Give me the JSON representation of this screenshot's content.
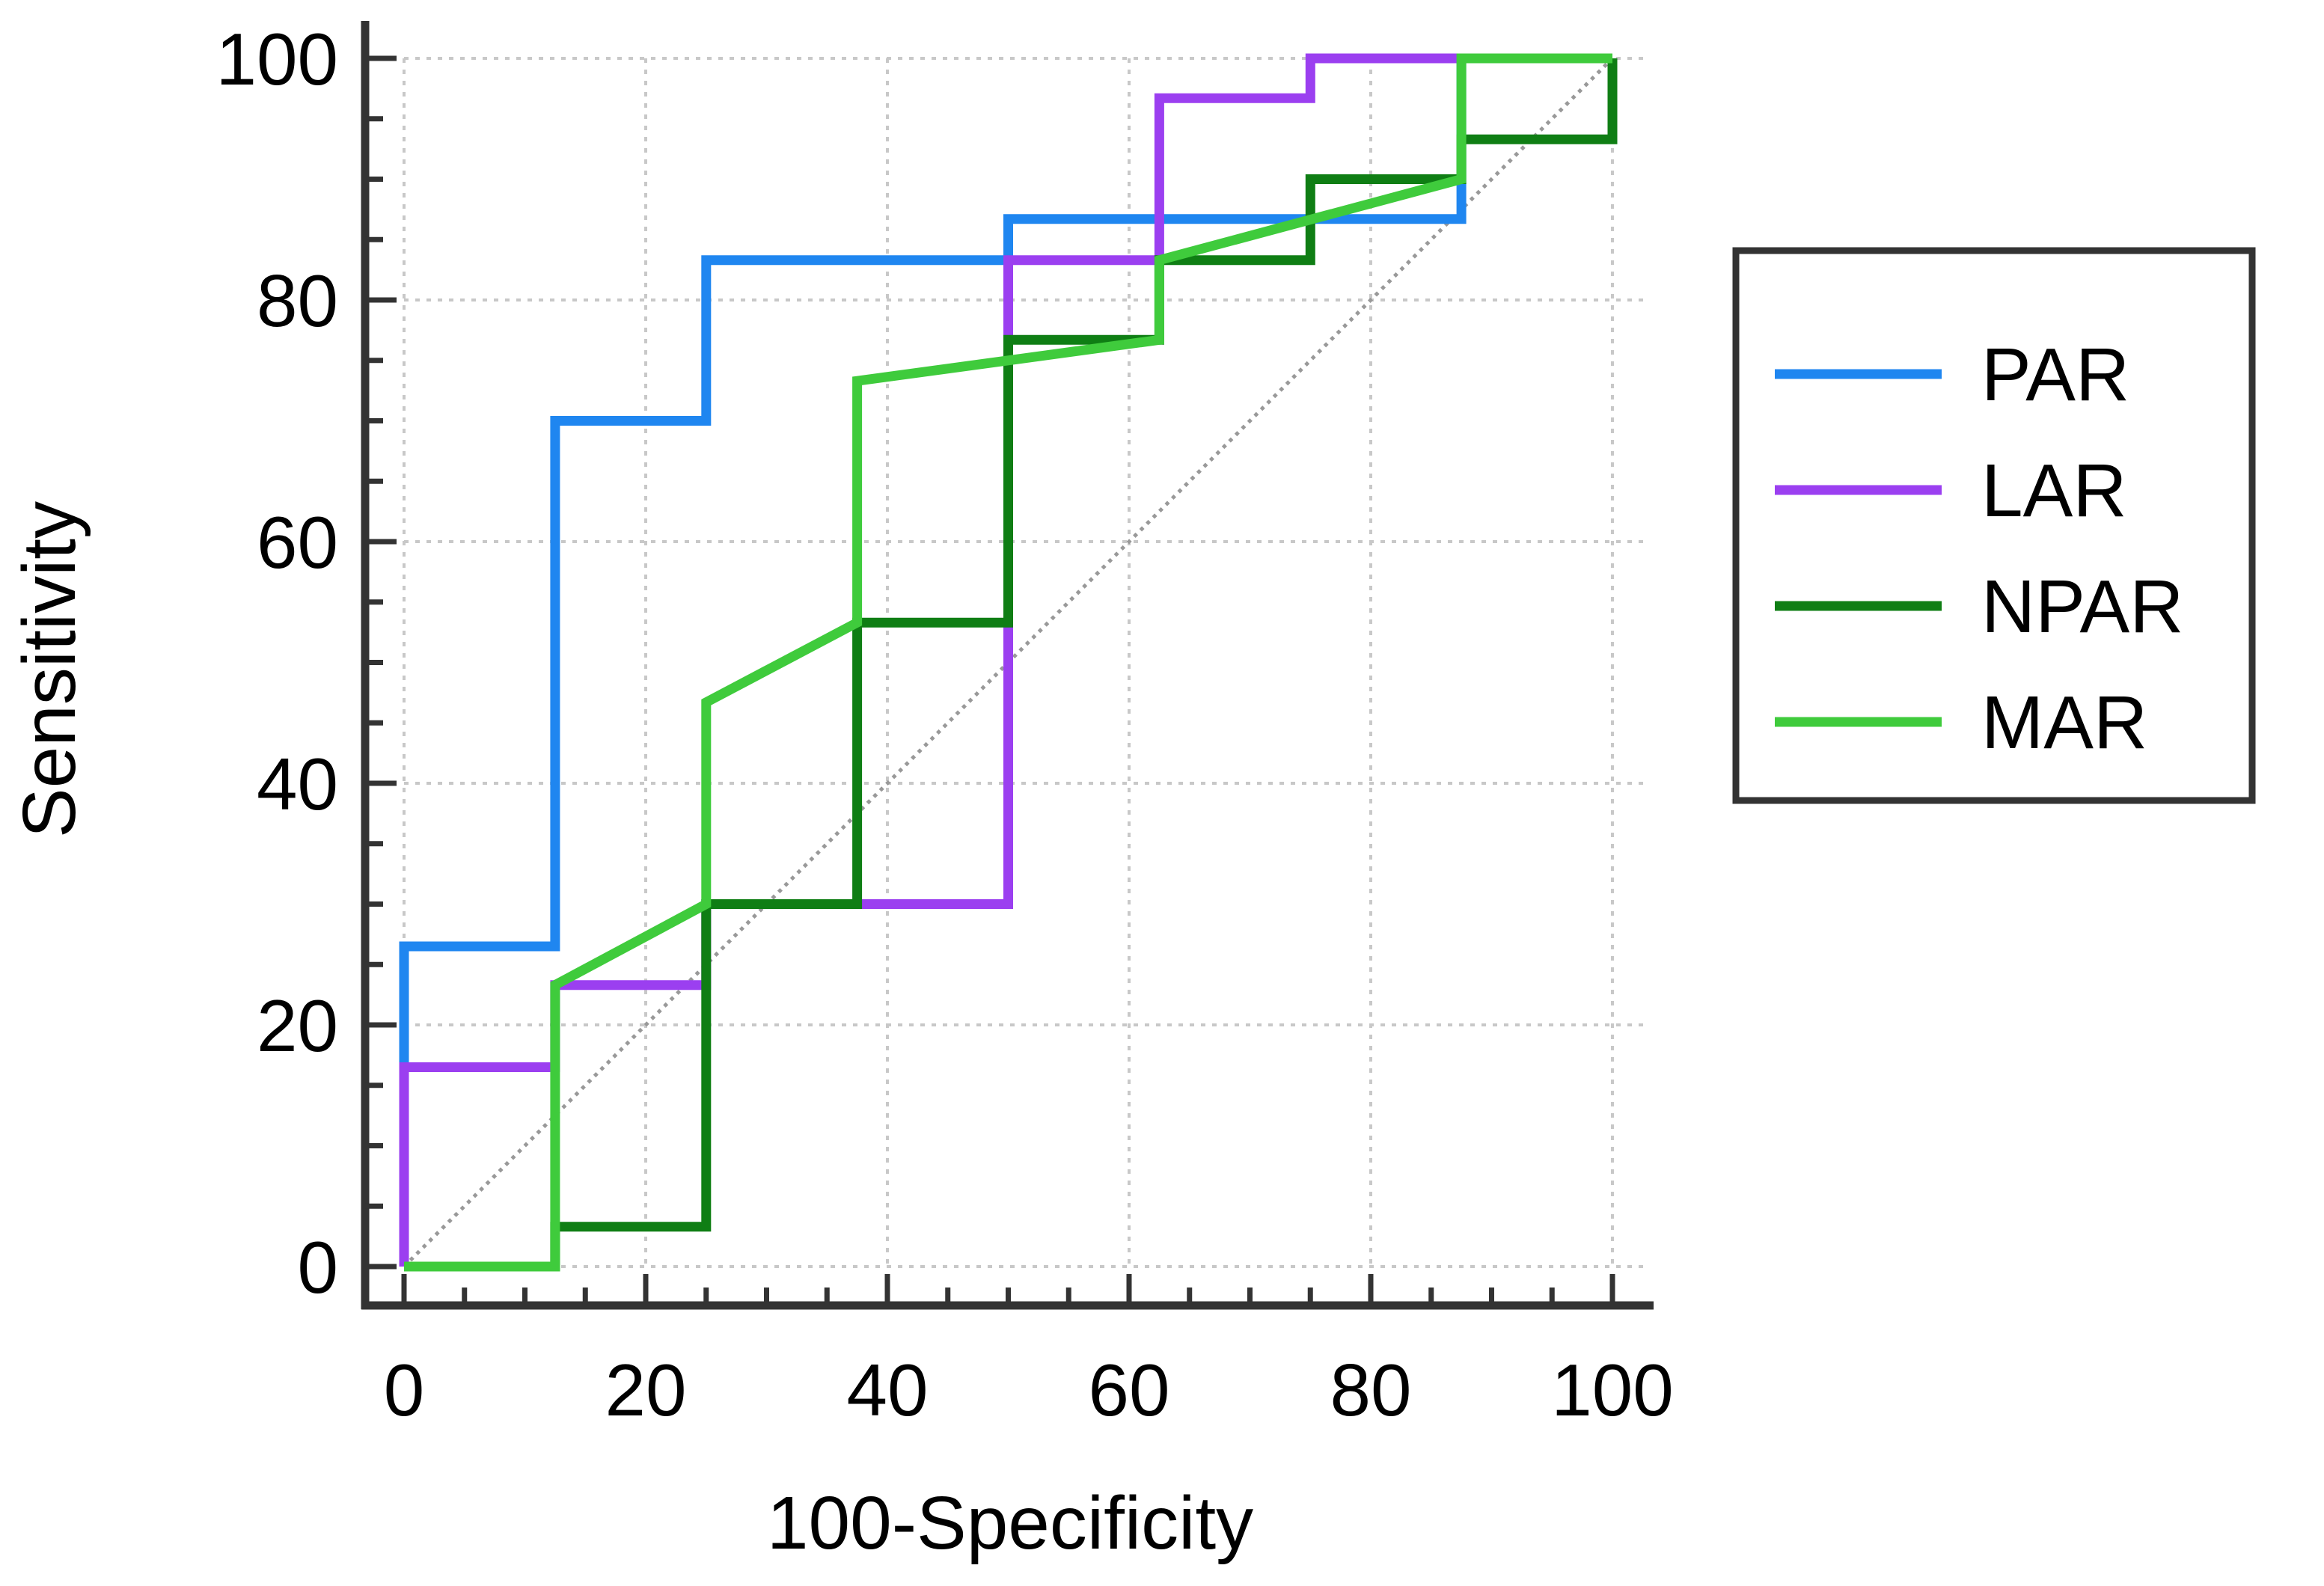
{
  "chart_data": {
    "type": "line",
    "title": "",
    "xlabel": "100-Specificity",
    "ylabel": "Sensitivity",
    "xlim": [
      0,
      100
    ],
    "ylim": [
      0,
      100
    ],
    "x_ticks": [
      "0",
      "20",
      "40",
      "60",
      "80",
      "100"
    ],
    "y_ticks": [
      "0",
      "20",
      "40",
      "60",
      "80",
      "100"
    ],
    "grid": true,
    "legend_position": "right",
    "reference_line": {
      "name": "chance diagonal",
      "from": [
        0,
        0
      ],
      "to": [
        100,
        100
      ],
      "style": "dotted",
      "color": "#999999"
    },
    "series": [
      {
        "name": "PAR",
        "color": "#1f86f0",
        "points": [
          [
            0,
            0
          ],
          [
            0,
            26.5
          ],
          [
            12.5,
            26.5
          ],
          [
            12.5,
            70
          ],
          [
            25,
            70
          ],
          [
            25,
            83.3
          ],
          [
            50,
            83.3
          ],
          [
            50,
            86.7
          ],
          [
            87.5,
            86.7
          ],
          [
            87.5,
            90
          ],
          [
            87.5,
            100
          ],
          [
            100,
            100
          ]
        ]
      },
      {
        "name": "LAR",
        "color": "#9b3ff0",
        "points": [
          [
            0,
            0
          ],
          [
            0,
            16.5
          ],
          [
            12.5,
            16.5
          ],
          [
            12.5,
            23.3
          ],
          [
            25,
            23.3
          ],
          [
            25,
            30
          ],
          [
            50,
            30
          ],
          [
            50,
            83.3
          ],
          [
            62.5,
            83.3
          ],
          [
            62.5,
            96.7
          ],
          [
            75,
            96.7
          ],
          [
            75,
            100
          ],
          [
            100,
            100
          ]
        ]
      },
      {
        "name": "NPAR",
        "color": "#0f7e14",
        "points": [
          [
            0,
            0
          ],
          [
            12.5,
            0
          ],
          [
            12.5,
            3.3
          ],
          [
            25,
            3.3
          ],
          [
            25,
            30
          ],
          [
            37.5,
            30
          ],
          [
            37.5,
            53.3
          ],
          [
            50,
            53.3
          ],
          [
            50,
            76.7
          ],
          [
            62.5,
            76.7
          ],
          [
            62.5,
            83.3
          ],
          [
            75,
            83.3
          ],
          [
            75,
            90
          ],
          [
            87.5,
            90
          ],
          [
            87.5,
            93.3
          ],
          [
            100,
            93.3
          ],
          [
            100,
            100
          ]
        ]
      },
      {
        "name": "MAR",
        "color": "#3fcb3c",
        "points": [
          [
            0,
            0
          ],
          [
            12.5,
            0
          ],
          [
            12.5,
            23.3
          ],
          [
            25,
            30
          ],
          [
            25,
            46.7
          ],
          [
            37.5,
            53.3
          ],
          [
            37.5,
            73.3
          ],
          [
            62.5,
            76.7
          ],
          [
            62.5,
            83.3
          ],
          [
            87.5,
            90
          ],
          [
            87.5,
            100
          ],
          [
            100,
            100
          ]
        ]
      }
    ]
  }
}
